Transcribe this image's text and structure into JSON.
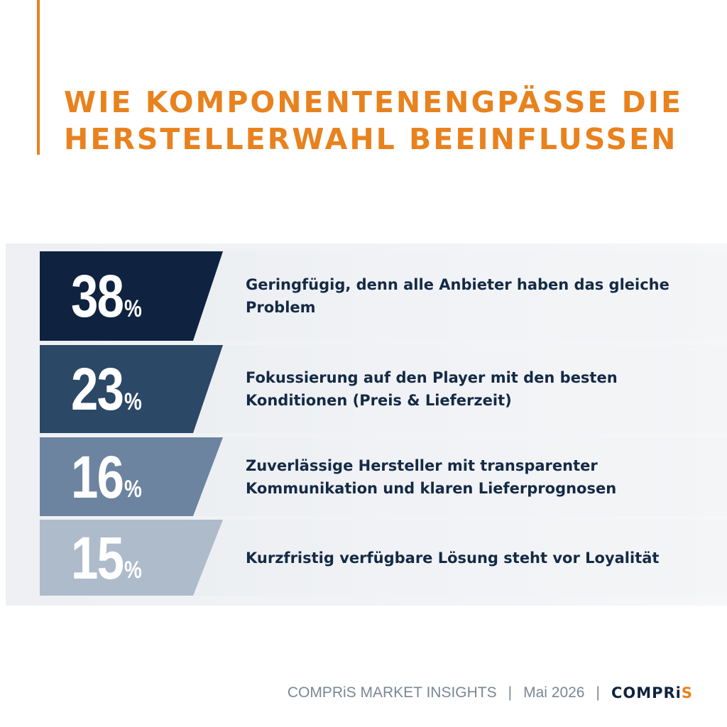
{
  "title": {
    "line1": "WIE KOMPONENTENENGPÄSSE DIE",
    "line2": "HERSTELLERWAHL BEEINFLUSSEN"
  },
  "colors": {
    "accent": "#e8821e",
    "text_dark": "#142a45",
    "bar_shades": [
      "#0f2340",
      "#2b4866",
      "#6c84a0",
      "#aebbcb"
    ]
  },
  "chart_data": {
    "type": "table",
    "title": "WIE KOMPONENTENENGPÄSSE DIE HERSTELLERWAHL BEEINFLUSSEN",
    "unit": "%",
    "rows": [
      {
        "value": 38,
        "value_text": "38",
        "unit": "%",
        "label": "Geringfügig, denn alle Anbieter haben das gleiche Problem"
      },
      {
        "value": 23,
        "value_text": "23",
        "unit": "%",
        "label": "Fokussierung auf den Player mit den besten Konditionen (Preis & Lieferzeit)"
      },
      {
        "value": 16,
        "value_text": "16",
        "unit": "%",
        "label": "Zuverlässige Hersteller mit transparenter Kommunikation und klaren Lieferprognosen"
      },
      {
        "value": 15,
        "value_text": "15",
        "unit": "%",
        "label": "Kurzfristig verfügbare Lösung steht vor Loyalität"
      }
    ]
  },
  "footer": {
    "source": "COMPRiS MARKET INSIGHTS",
    "separator": "|",
    "date": "Mai 2026",
    "logo_main": "COMPRi",
    "logo_accent": "S"
  }
}
